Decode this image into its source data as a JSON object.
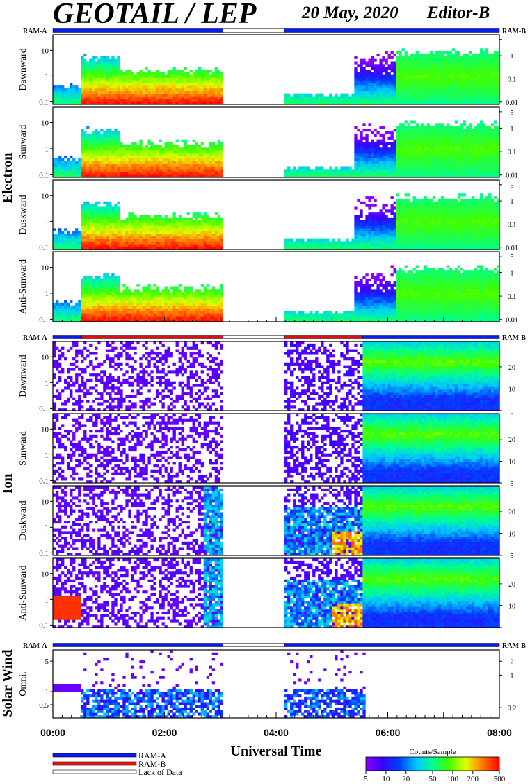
{
  "header": {
    "title": "GEOTAIL / LEP",
    "date": "20 May, 2020",
    "editor": "Editor-B"
  },
  "ram_labels": {
    "a": "RAM-A",
    "b": "RAM-B"
  },
  "group_labels": {
    "electron": "Electron",
    "ion": "Ion",
    "solar_wind": "Solar Wind"
  },
  "legend": {
    "items": [
      {
        "label": "RAM-A",
        "color": "#0a1aff"
      },
      {
        "label": "RAM-B",
        "color": "#e01010"
      },
      {
        "label": "Lack of Data",
        "color": "#ffffff"
      }
    ]
  },
  "colorbar": {
    "title": "Counts/Sample",
    "ticks": [
      "5",
      "10",
      "20",
      "50",
      "100",
      "200",
      "500"
    ],
    "tick_values": [
      5,
      10,
      20,
      50,
      100,
      200,
      500
    ],
    "range": [
      5,
      500
    ],
    "scale": "log"
  },
  "chart_data": {
    "type": "heatmap",
    "xlabel": "Universal Time",
    "x_ticks": [
      "00:00",
      "02:00",
      "04:00",
      "06:00",
      "08:00"
    ],
    "xlim_hours": [
      0,
      8
    ],
    "data_gap_hours": [
      3.05,
      4.15
    ],
    "ram_status_bars": {
      "electron": [
        {
          "start": 0.0,
          "end": 3.05,
          "mode": "RAM-A"
        },
        {
          "start": 3.05,
          "end": 4.15,
          "mode": "Lack of Data"
        },
        {
          "start": 4.15,
          "end": 8.0,
          "mode": "RAM-A"
        }
      ],
      "ion": [
        {
          "start": 0.0,
          "end": 0.52,
          "mode": "RAM-A"
        },
        {
          "start": 0.52,
          "end": 3.05,
          "mode": "RAM-B"
        },
        {
          "start": 3.05,
          "end": 4.15,
          "mode": "Lack of Data"
        },
        {
          "start": 4.15,
          "end": 5.55,
          "mode": "RAM-B"
        },
        {
          "start": 5.55,
          "end": 8.0,
          "mode": "RAM-A"
        }
      ],
      "solar_wind": [
        {
          "start": 0.0,
          "end": 3.05,
          "mode": "RAM-A"
        },
        {
          "start": 3.05,
          "end": 4.15,
          "mode": "Lack of Data"
        },
        {
          "start": 4.15,
          "end": 8.0,
          "mode": "RAM-A"
        }
      ]
    },
    "panels": [
      {
        "group": "electron",
        "label": "Dawnward",
        "left_ticks": [
          "10",
          "1",
          "0.1"
        ],
        "left_values": [
          10,
          1,
          0.1
        ],
        "ylim": [
          0.08,
          40
        ],
        "right_ticks": [
          "5",
          "1",
          "0.1",
          "0.01"
        ],
        "right_values": [
          5,
          1,
          0.1,
          0.01
        ],
        "rlim": [
          0.008,
          8
        ],
        "kind": "electron"
      },
      {
        "group": "electron",
        "label": "Sunward",
        "left_ticks": [
          "10",
          "1",
          "0.1"
        ],
        "left_values": [
          10,
          1,
          0.1
        ],
        "ylim": [
          0.08,
          40
        ],
        "right_ticks": [
          "5",
          "1",
          "0.1",
          "0.01"
        ],
        "right_values": [
          5,
          1,
          0.1,
          0.01
        ],
        "rlim": [
          0.008,
          8
        ],
        "kind": "electron"
      },
      {
        "group": "electron",
        "label": "Duskward",
        "left_ticks": [
          "10",
          "1",
          "0.1"
        ],
        "left_values": [
          10,
          1,
          0.1
        ],
        "ylim": [
          0.08,
          40
        ],
        "right_ticks": [
          "5",
          "1",
          "0.1",
          "0.01"
        ],
        "right_values": [
          5,
          1,
          0.1,
          0.01
        ],
        "rlim": [
          0.008,
          8
        ],
        "kind": "electron"
      },
      {
        "group": "electron",
        "label": "Anti-Sunward",
        "left_ticks": [
          "10",
          "1",
          "0.1"
        ],
        "left_values": [
          10,
          1,
          0.1
        ],
        "ylim": [
          0.08,
          40
        ],
        "right_ticks": [
          "5",
          "1",
          "0.1",
          "0.01"
        ],
        "right_values": [
          5,
          1,
          0.1,
          0.01
        ],
        "rlim": [
          0.008,
          8
        ],
        "kind": "electron"
      },
      {
        "group": "ion",
        "label": "Dawnward",
        "left_ticks": [
          "10",
          "1",
          "0.1"
        ],
        "left_values": [
          10,
          1,
          0.1
        ],
        "ylim": [
          0.08,
          40
        ],
        "right_ticks": [
          "20",
          "10",
          "5"
        ],
        "right_values": [
          20,
          10,
          5
        ],
        "rlim": [
          5,
          45
        ],
        "kind": "ion"
      },
      {
        "group": "ion",
        "label": "Sunward",
        "left_ticks": [
          "10",
          "1",
          "0.1"
        ],
        "left_values": [
          10,
          1,
          0.1
        ],
        "ylim": [
          0.08,
          40
        ],
        "right_ticks": [
          "20",
          "10",
          "5"
        ],
        "right_values": [
          20,
          10,
          5
        ],
        "rlim": [
          5,
          45
        ],
        "kind": "ion"
      },
      {
        "group": "ion",
        "label": "Duskward",
        "left_ticks": [
          "10",
          "1",
          "0.1"
        ],
        "left_values": [
          10,
          1,
          0.1
        ],
        "ylim": [
          0.08,
          40
        ],
        "right_ticks": [
          "20",
          "10",
          "5"
        ],
        "right_values": [
          20,
          10,
          5
        ],
        "rlim": [
          5,
          45
        ],
        "kind": "ion_dusk"
      },
      {
        "group": "ion",
        "label": "Anti-Sunward",
        "left_ticks": [
          "10",
          "1",
          "0.1"
        ],
        "left_values": [
          10,
          1,
          0.1
        ],
        "ylim": [
          0.08,
          40
        ],
        "right_ticks": [
          "20",
          "10",
          "5"
        ],
        "right_values": [
          20,
          10,
          5
        ],
        "rlim": [
          5,
          45
        ],
        "kind": "ion_anti"
      },
      {
        "group": "solar_wind",
        "label": "Omni.",
        "left_ticks": [
          "5",
          "1",
          "0.5"
        ],
        "left_values": [
          5,
          1,
          0.5
        ],
        "ylim": [
          0.25,
          9
        ],
        "right_ticks": [
          "2",
          "1",
          "0.2"
        ],
        "right_values": [
          2,
          1,
          0.2
        ],
        "rlim": [
          0.12,
          3.5
        ],
        "kind": "sw"
      }
    ]
  }
}
